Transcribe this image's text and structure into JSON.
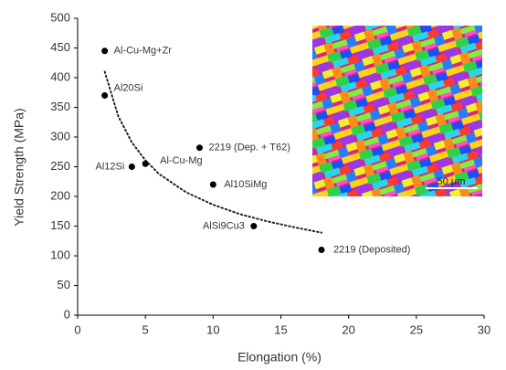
{
  "chart_data": {
    "type": "scatter",
    "x_label": "Elongation (%)",
    "y_label": "Yield Strength (MPa)",
    "xlim": [
      0,
      30
    ],
    "xticks": [
      0,
      5,
      10,
      15,
      20,
      25,
      30
    ],
    "ylim": [
      0,
      500
    ],
    "yticks": [
      0,
      50,
      100,
      150,
      200,
      250,
      300,
      350,
      400,
      450,
      500
    ],
    "color": "#000000",
    "x": [
      2,
      2,
      9,
      4,
      5,
      10,
      13,
      18
    ],
    "values": [
      445,
      370,
      282,
      250,
      255,
      220,
      150,
      110
    ],
    "labels": [
      "Al-Cu-Mg+Zr",
      "Al20Si",
      "2219 (Dep. + T62)",
      "Al12Si",
      "Al-Cu-Mg",
      "Al10SiMg",
      "AlSi9Cu3",
      "2219 (Deposited)"
    ],
    "trend": {
      "x": [
        2,
        3,
        4,
        5,
        6,
        8,
        10,
        12,
        14,
        16,
        18
      ],
      "values": [
        410,
        335,
        291,
        261,
        238,
        207,
        186,
        170,
        158,
        148,
        139
      ]
    },
    "inset_scale_label": "50 μm"
  }
}
